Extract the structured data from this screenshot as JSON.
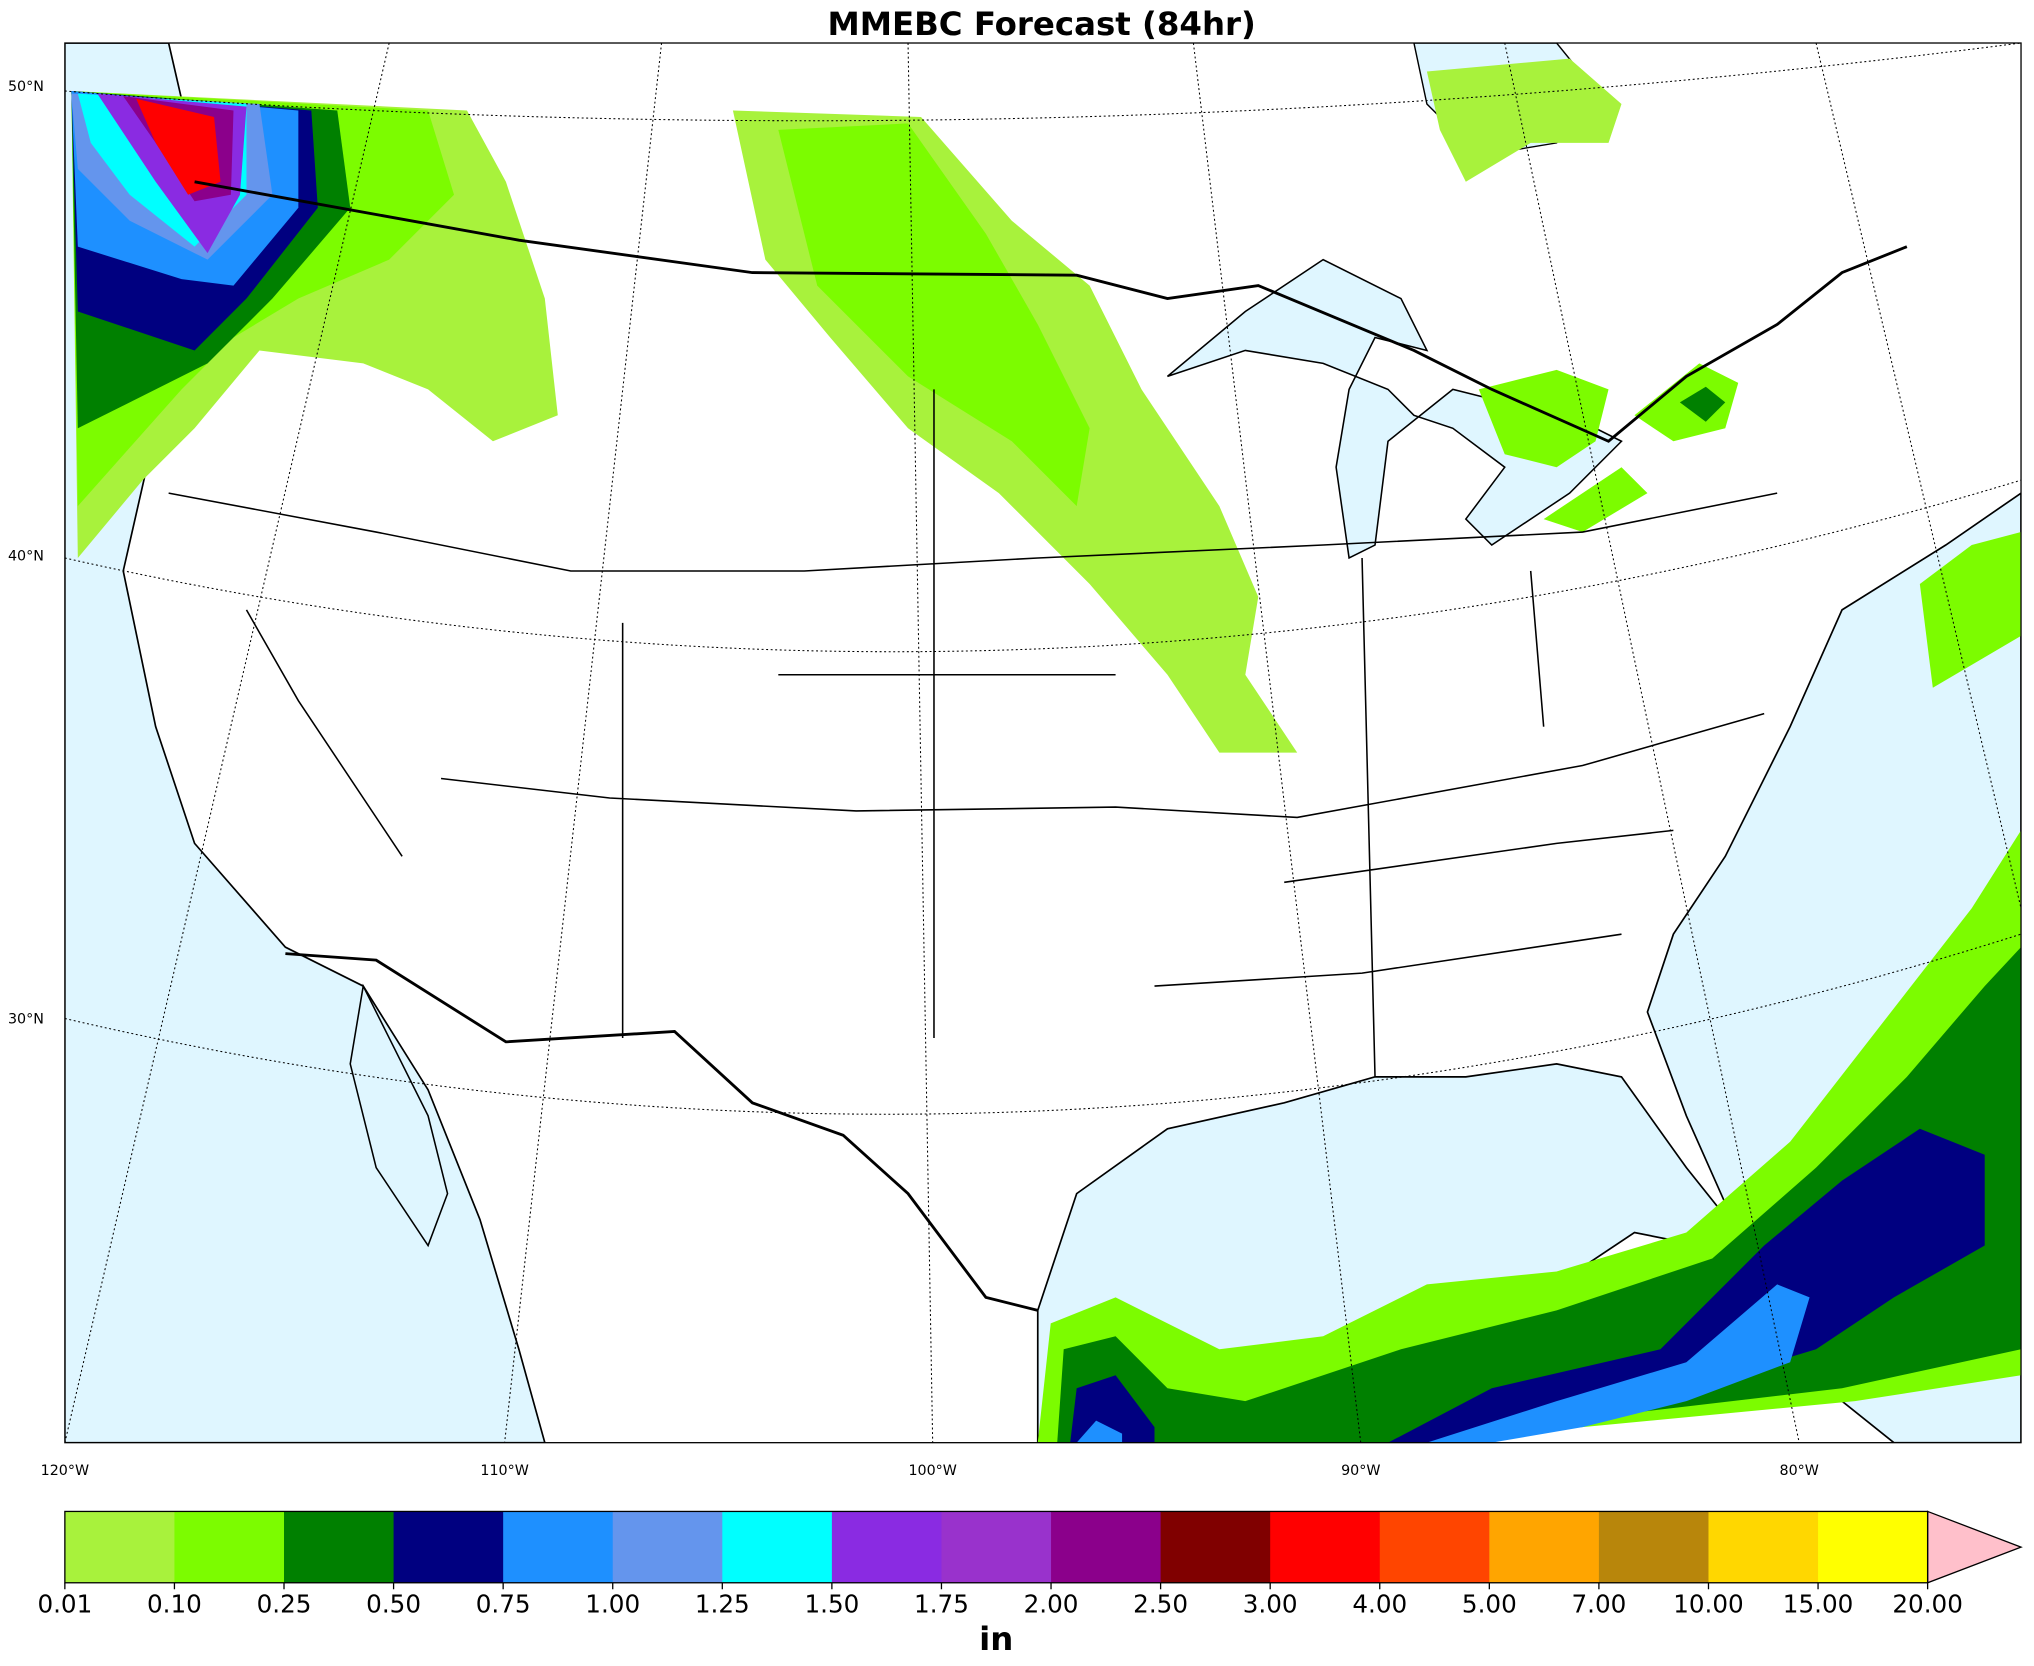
{
  "title": "MMEBC Forecast (84hr)",
  "lat_labels": [
    "50°N",
    "40°N",
    "30°N"
  ],
  "lon_labels": [
    "120°W",
    "110°W",
    "100°W",
    "90°W",
    "80°W"
  ],
  "colorbar": {
    "levels": [
      "0.01",
      "0.10",
      "0.25",
      "0.50",
      "0.75",
      "1.00",
      "1.25",
      "1.50",
      "1.75",
      "2.00",
      "2.50",
      "3.00",
      "4.00",
      "5.00",
      "7.00",
      "10.00",
      "15.00",
      "20.00"
    ],
    "colors": [
      "#a8f23c",
      "#7cfc00",
      "#008000",
      "#000080",
      "#1e90ff",
      "#6495ed",
      "#00ffff",
      "#8a2be2",
      "#9932cc",
      "#8b008b",
      "#800000",
      "#ff0000",
      "#ff4500",
      "#ffa500",
      "#b8860b",
      "#ffd700",
      "#ffff00"
    ],
    "extend_color": "#ffc0cb",
    "unit": "in"
  }
}
